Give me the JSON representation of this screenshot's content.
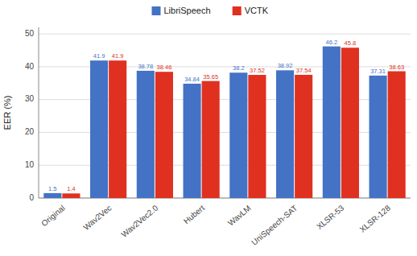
{
  "chart_data": {
    "type": "bar",
    "ylabel": "EER (%)",
    "categories": [
      "Original",
      "Wav2Vec",
      "Wav2Vec2.0",
      "Hubert",
      "WavLM",
      "UniSpeech-SAT",
      "XLSR-53",
      "XLSR-128"
    ],
    "series": [
      {
        "name": "LibriSpeech",
        "color": "#4472C4",
        "values": [
          1.5,
          41.9,
          38.78,
          34.84,
          38.2,
          38.92,
          46.2,
          37.31
        ]
      },
      {
        "name": "VCTK",
        "color": "#E03020",
        "values": [
          1.4,
          41.9,
          38.46,
          35.65,
          37.52,
          37.54,
          45.8,
          38.63
        ]
      }
    ],
    "ylim": [
      0,
      52
    ],
    "yticks": [
      0,
      10,
      20,
      30,
      40,
      50
    ],
    "grid": true,
    "legend": "top",
    "data_labels": true
  }
}
